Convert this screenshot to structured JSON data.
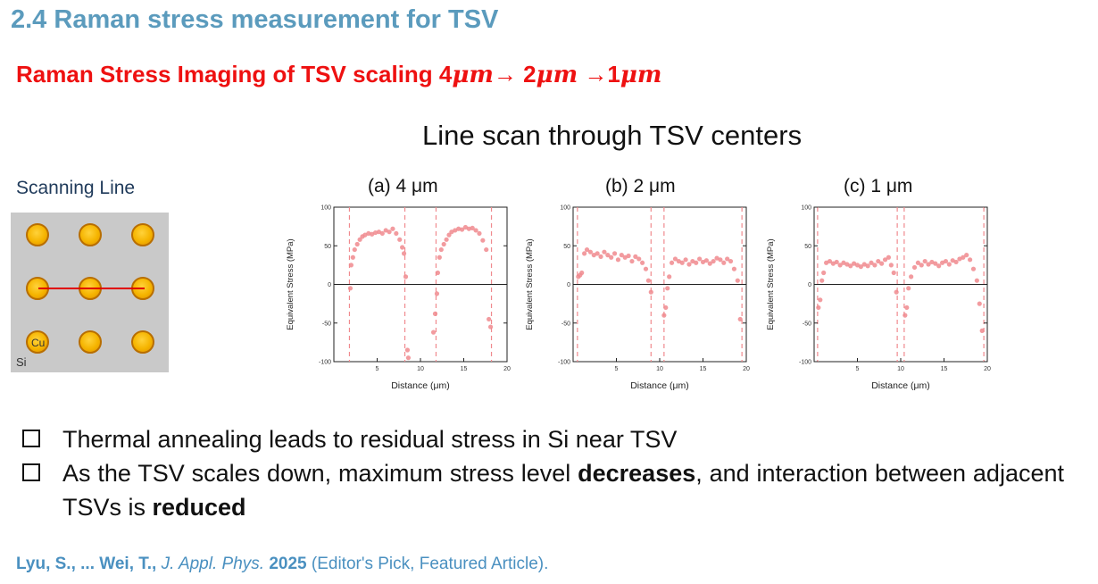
{
  "slide": {
    "title": "2.4 Raman stress measurement for TSV",
    "subtitle_prefix": "Raman Stress Imaging of TSV scaling 4",
    "um1": "μm",
    "arrow1": "→ 2",
    "um2": "μm",
    "arrow2": " →1",
    "um3": "μm",
    "line_scan_title": "Line scan through TSV centers",
    "scanning_line_label": "Scanning Line",
    "cu_label": "Cu",
    "si_label": "Si"
  },
  "colors": {
    "title": "#5b9bbd",
    "subtitle": "#ee1111",
    "points": "#f08a8e",
    "guide": "#f08a8e"
  },
  "bullets": {
    "b1": "Thermal annealing leads to residual stress in Si near TSV",
    "b2_a": "As the TSV scales down, maximum stress level ",
    "b2_bold1": "decreases",
    "b2_b": ", and interaction between adjacent TSVs is ",
    "b2_bold2": "reduced"
  },
  "citation": {
    "authors": "Lyu, S., ... Wei, T.,",
    "journal": " J. Appl. Phys.",
    "year": " 2025",
    "note": " (Editor's Pick, Featured Article)."
  },
  "chart_data": [
    {
      "type": "scatter",
      "title": "(a) 4 μm",
      "xlabel": "Distance (μm)",
      "ylabel": "Equivalent Stress (MPa)",
      "xlim": [
        0,
        20
      ],
      "ylim": [
        -100,
        100
      ],
      "xticks": [
        5,
        10,
        15,
        20
      ],
      "yticks": [
        -100,
        -50,
        0,
        50,
        100
      ],
      "zero_line": true,
      "guides": [
        1.8,
        8.2,
        11.8,
        18.2
      ],
      "x": [
        1.9,
        2.0,
        2.2,
        2.4,
        2.7,
        3.0,
        3.3,
        3.6,
        4.0,
        4.4,
        4.8,
        5.2,
        5.6,
        6.0,
        6.4,
        6.8,
        7.2,
        7.6,
        7.9,
        8.1,
        8.3,
        8.5,
        8.6,
        11.5,
        11.7,
        11.9,
        12.0,
        12.2,
        12.4,
        12.7,
        13.0,
        13.3,
        13.6,
        14.0,
        14.4,
        14.8,
        15.2,
        15.6,
        16.0,
        16.4,
        16.8,
        17.2,
        17.6,
        17.9,
        18.1
      ],
      "y": [
        -5,
        25,
        35,
        45,
        52,
        58,
        62,
        64,
        66,
        65,
        67,
        68,
        66,
        70,
        68,
        72,
        66,
        58,
        48,
        40,
        10,
        -85,
        -95,
        -62,
        -38,
        -12,
        15,
        35,
        45,
        52,
        58,
        64,
        68,
        70,
        72,
        71,
        74,
        72,
        73,
        70,
        66,
        57,
        45,
        -45,
        -55
      ]
    },
    {
      "type": "scatter",
      "title": "(b) 2 μm",
      "xlabel": "Distance (μm)",
      "ylabel": "Equivalent Stress (MPa)",
      "xlim": [
        0,
        20
      ],
      "ylim": [
        -100,
        100
      ],
      "xticks": [
        5,
        10,
        15,
        20
      ],
      "yticks": [
        -100,
        -50,
        0,
        50,
        100
      ],
      "zero_line": true,
      "guides": [
        0.5,
        9.0,
        10.5,
        19.5
      ],
      "x": [
        0.6,
        0.8,
        1.0,
        1.3,
        1.6,
        2.0,
        2.4,
        2.8,
        3.2,
        3.6,
        4.0,
        4.4,
        4.8,
        5.2,
        5.6,
        6.0,
        6.4,
        6.8,
        7.2,
        7.6,
        8.0,
        8.4,
        8.7,
        9.0,
        10.5,
        10.7,
        10.9,
        11.1,
        11.4,
        11.8,
        12.2,
        12.6,
        13.0,
        13.4,
        13.8,
        14.2,
        14.6,
        15.0,
        15.4,
        15.8,
        16.2,
        16.6,
        17.0,
        17.4,
        17.8,
        18.2,
        18.6,
        19.0,
        19.3
      ],
      "y": [
        10,
        12,
        15,
        40,
        45,
        42,
        38,
        40,
        36,
        42,
        38,
        35,
        40,
        32,
        38,
        35,
        37,
        30,
        36,
        33,
        28,
        20,
        5,
        -10,
        -40,
        -30,
        -5,
        10,
        28,
        33,
        30,
        28,
        32,
        26,
        30,
        28,
        33,
        29,
        31,
        27,
        30,
        34,
        32,
        28,
        33,
        30,
        20,
        5,
        -45
      ]
    },
    {
      "type": "scatter",
      "title": "(c) 1 μm",
      "xlabel": "Distance (μm)",
      "ylabel": "Equivalent Stress (MPa)",
      "xlim": [
        0,
        20
      ],
      "ylim": [
        -100,
        100
      ],
      "xticks": [
        5,
        10,
        15,
        20
      ],
      "yticks": [
        -100,
        -50,
        0,
        50,
        100
      ],
      "zero_line": true,
      "guides": [
        0.4,
        9.6,
        10.4,
        19.6
      ],
      "x": [
        0.5,
        0.7,
        0.9,
        1.1,
        1.4,
        1.8,
        2.2,
        2.6,
        3.0,
        3.4,
        3.8,
        4.2,
        4.6,
        5.0,
        5.4,
        5.8,
        6.2,
        6.6,
        7.0,
        7.4,
        7.8,
        8.2,
        8.6,
        8.9,
        9.2,
        9.5,
        10.5,
        10.7,
        10.9,
        11.2,
        11.6,
        12.0,
        12.4,
        12.8,
        13.2,
        13.6,
        14.0,
        14.4,
        14.8,
        15.2,
        15.6,
        16.0,
        16.4,
        16.8,
        17.2,
        17.6,
        18.0,
        18.4,
        18.8,
        19.1,
        19.4
      ],
      "y": [
        -30,
        -20,
        5,
        15,
        28,
        30,
        27,
        29,
        25,
        28,
        26,
        24,
        27,
        25,
        23,
        26,
        24,
        28,
        25,
        30,
        27,
        32,
        35,
        25,
        15,
        -10,
        -40,
        -30,
        -5,
        10,
        22,
        28,
        25,
        30,
        26,
        29,
        27,
        24,
        28,
        30,
        26,
        31,
        29,
        33,
        35,
        38,
        32,
        20,
        5,
        -25,
        -60
      ]
    }
  ]
}
